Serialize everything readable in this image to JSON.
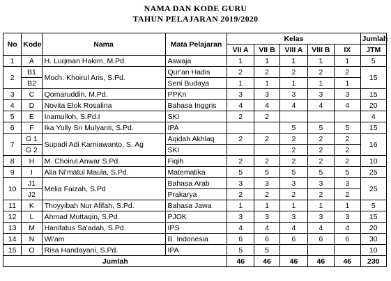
{
  "title_line1": "NAMA DAN KODE GURU",
  "title_line2": "TAHUN PELAJARAN 2019/2020",
  "headers": {
    "no": "No",
    "kode": "Kode",
    "nama": "Nama",
    "mapel": "Mata Pelajaran",
    "kelas": "Kelas",
    "classes": [
      "VII A",
      "VII B",
      "VIII A",
      "VIII B",
      "IX"
    ],
    "jumlah": "Jumlah",
    "jtm": "JTM"
  },
  "rows": [
    {
      "no": "1",
      "kode": "A",
      "nama": "H. Luqman Hakim, M.Pd.",
      "subs": [
        {
          "kode": "A",
          "mapel": "Aswaja",
          "v": [
            "1",
            "1",
            "1",
            "1",
            "1"
          ]
        }
      ],
      "jtm": "5"
    },
    {
      "no": "2",
      "nama": "Moch. Khoirul Aris, S.Pd.",
      "subs": [
        {
          "kode": "B1",
          "mapel": "Qur'an Hadis",
          "v": [
            "2",
            "2",
            "2",
            "2",
            "2"
          ]
        },
        {
          "kode": "B2",
          "mapel": "Seni Budaya",
          "v": [
            "1",
            "1",
            "1",
            "1",
            "1"
          ]
        }
      ],
      "jtm": "15"
    },
    {
      "no": "3",
      "nama": "Qomaruddin, M.Pd.",
      "subs": [
        {
          "kode": "C",
          "mapel": "PPKn",
          "v": [
            "3",
            "3",
            "3",
            "3",
            "3"
          ]
        }
      ],
      "jtm": "15"
    },
    {
      "no": "4",
      "nama": "Novita Elok Rosalina",
      "subs": [
        {
          "kode": "D",
          "mapel": "Bahasa Inggris",
          "v": [
            "4",
            "4",
            "4",
            "4",
            "4"
          ]
        }
      ],
      "jtm": "20"
    },
    {
      "no": "5",
      "nama": "Inamulloh, S.Pd.I",
      "subs": [
        {
          "kode": "E",
          "mapel": "SKI",
          "v": [
            "2",
            "2",
            "",
            "",
            ""
          ]
        }
      ],
      "jtm": "4"
    },
    {
      "no": "6",
      "nama": "Ika Yully Sri Mulyanti, S.Pd.",
      "subs": [
        {
          "kode": "F",
          "mapel": "IPA",
          "v": [
            "",
            "",
            "5",
            "5",
            "5"
          ]
        }
      ],
      "jtm": "15"
    },
    {
      "no": "7",
      "nama": "Supadi Adi Karniawanto, S. Ag",
      "subs": [
        {
          "kode": "G 1",
          "mapel": "Aqidah Akhlaq",
          "v": [
            "2",
            "2",
            "2",
            "2",
            "2"
          ]
        },
        {
          "kode": "G 2",
          "mapel": "SKI",
          "v": [
            "",
            "",
            "2",
            "2",
            "2"
          ]
        }
      ],
      "jtm": "16"
    },
    {
      "no": "8",
      "nama": "M. Choirul Anwar S.Pd.",
      "subs": [
        {
          "kode": "H",
          "mapel": "Fiqih",
          "v": [
            "2",
            "2",
            "2",
            "2",
            "2"
          ]
        }
      ],
      "jtm": "10"
    },
    {
      "no": "9",
      "nama": "Alia Ni'matul Maula, S.Pd.",
      "subs": [
        {
          "kode": "I",
          "mapel": "Matematika",
          "v": [
            "5",
            "5",
            "5",
            "5",
            "5"
          ]
        }
      ],
      "jtm": "25"
    },
    {
      "no": "10",
      "nama": "Melia Faizah, S.Pd",
      "subs": [
        {
          "kode": "J1",
          "mapel": "Bahasa Arab",
          "v": [
            "3",
            "3",
            "3",
            "3",
            "3"
          ]
        },
        {
          "kode": "J2",
          "mapel": "Prakarya",
          "v": [
            "2",
            "2",
            "2",
            "2",
            "2"
          ]
        }
      ],
      "jtm": "25"
    },
    {
      "no": "11",
      "nama": "Thoyyibah Nur Afifah, S.Pd.",
      "subs": [
        {
          "kode": "K",
          "mapel": "Bahasa Jawa",
          "v": [
            "1",
            "1",
            "1",
            "1",
            "1"
          ]
        }
      ],
      "jtm": "5"
    },
    {
      "no": "12",
      "nama": "Ahmad Muttaqin, S.Pd.",
      "subs": [
        {
          "kode": "L",
          "mapel": "PJOK",
          "v": [
            "3",
            "3",
            "3",
            "3",
            "3"
          ]
        }
      ],
      "jtm": "15"
    },
    {
      "no": "13",
      "nama": "Hanifatus Sa'adah, S.Pd.",
      "subs": [
        {
          "kode": "M",
          "mapel": "IPS",
          "v": [
            "4",
            "4",
            "4",
            "4",
            "4"
          ]
        }
      ],
      "jtm": "20"
    },
    {
      "no": "14",
      "nama": "Wi'am",
      "subs": [
        {
          "kode": "N",
          "mapel": "B. Indonesia",
          "v": [
            "6",
            "6",
            "6",
            "6",
            "6"
          ]
        }
      ],
      "jtm": "30"
    },
    {
      "no": "15",
      "nama": "Risa Handayani, S.Pd.",
      "subs": [
        {
          "kode": "O",
          "mapel": "IPA",
          "v": [
            "5",
            "5",
            "",
            "",
            ""
          ]
        }
      ],
      "jtm": "10"
    }
  ],
  "total": {
    "label": "Jumlah",
    "v": [
      "46",
      "46",
      "46",
      "46",
      "46"
    ],
    "jtm": "230"
  }
}
